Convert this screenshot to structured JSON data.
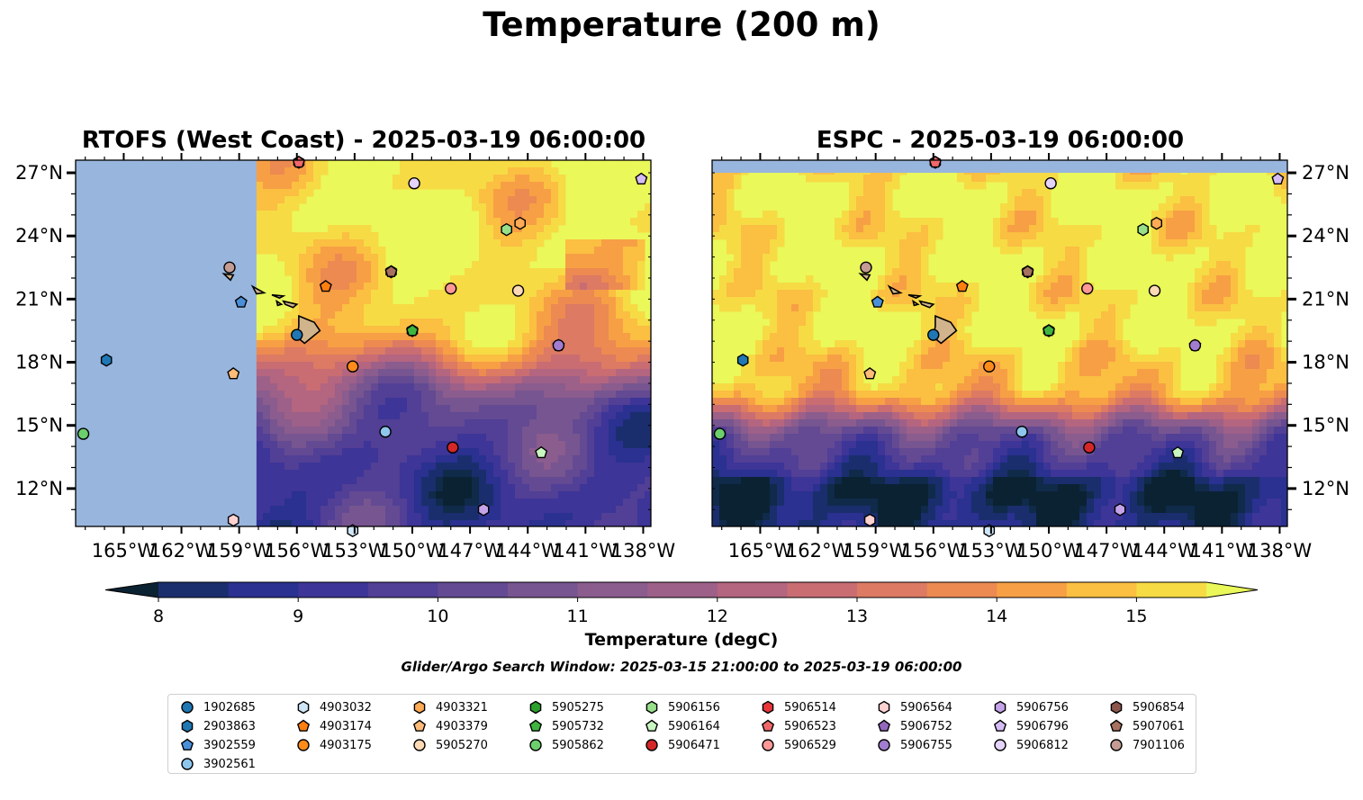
{
  "figure": {
    "title": "Temperature (200 m)",
    "search_window": "Glider/Argo Search Window: 2025-03-15 21:00:00 to 2025-03-19 06:00:00"
  },
  "chart_data": [
    {
      "type": "heatmap",
      "title": "RTOFS (West Coast) - 2025-03-19 06:00:00",
      "model": "RTOFS (West Coast)",
      "valid_time": "2025-03-19 06:00:00",
      "xlabel": "",
      "ylabel": "",
      "xlim": [
        -167.5,
        -137.6
      ],
      "ylim": [
        10.2,
        27.6
      ],
      "x_ticks": [
        "165°W",
        "162°W",
        "159°W",
        "156°W",
        "153°W",
        "150°W",
        "147°W",
        "144°W",
        "141°W",
        "138°W"
      ],
      "y_ticks": [
        "12°N",
        "15°N",
        "18°N",
        "21°N",
        "24°N",
        "27°N"
      ],
      "y_tick_side": "left",
      "no_data_region": {
        "lon_min": -167.5,
        "lon_max": -158.1,
        "lat_min": 10.2,
        "lat_max": 27.6,
        "color": "#98b5de"
      },
      "field_summary": "Mostly above 15 degC in the north; cooler (10-13 degC) tongues south of 19N"
    },
    {
      "type": "heatmap",
      "title": "ESPC - 2025-03-19 06:00:00",
      "model": "ESPC",
      "valid_time": "2025-03-19 06:00:00",
      "xlabel": "",
      "ylabel": "",
      "xlim": [
        -167.5,
        -137.6
      ],
      "ylim": [
        10.2,
        27.6
      ],
      "x_ticks": [
        "165°W",
        "162°W",
        "159°W",
        "156°W",
        "153°W",
        "150°W",
        "147°W",
        "144°W",
        "141°W",
        "138°W"
      ],
      "y_ticks": [
        "12°N",
        "15°N",
        "18°N",
        "21°N",
        "24°N",
        "27°N"
      ],
      "y_tick_side": "right",
      "no_data_region": {
        "lon_min": -167.5,
        "lon_max": -137.6,
        "lat_min": 27.0,
        "lat_max": 27.6,
        "color": "#98b5de"
      },
      "field_summary": "Above 15 degC north of about 16N; 9-12 degC in the south"
    }
  ],
  "colorbar": {
    "label": "Temperature (degC)",
    "ticks": [
      "8",
      "9",
      "10",
      "11",
      "12",
      "13",
      "14",
      "15"
    ],
    "levels": [
      7.75,
      8.0,
      8.5,
      9.0,
      9.5,
      10.0,
      10.5,
      11.0,
      11.5,
      12.0,
      12.5,
      13.0,
      13.5,
      14.0,
      14.5,
      15.0,
      15.5
    ],
    "colors": [
      "#0b2233",
      "#102a4a",
      "#1a2e6e",
      "#2a3190",
      "#3d3597",
      "#523f96",
      "#634a93",
      "#775590",
      "#8b5c8e",
      "#9d6088",
      "#b4657f",
      "#c96d73",
      "#dc7a63",
      "#ec8a52",
      "#f79f45",
      "#fbbf41",
      "#f6db45",
      "#eaf85a"
    ],
    "extend": "both"
  },
  "platforms": [
    {
      "id": "1902685",
      "lon": -156.0,
      "lat": 19.3,
      "marker": "circle",
      "color": "#1f77b4"
    },
    {
      "id": "2903863",
      "lon": -165.9,
      "lat": 18.1,
      "marker": "hexagon",
      "color": "#1f77b4"
    },
    {
      "id": "3902559",
      "lon": -158.9,
      "lat": 20.85,
      "marker": "pentagon",
      "color": "#4a90d9"
    },
    {
      "id": "3902561",
      "lon": -151.4,
      "lat": 14.7,
      "marker": "circle",
      "color": "#8fc6ee"
    },
    {
      "id": "4903032",
      "lon": -153.1,
      "lat": 10.0,
      "marker": "hexagon",
      "color": "#cfe6f7"
    },
    {
      "id": "4903174",
      "lon": -154.5,
      "lat": 21.6,
      "marker": "pentagon",
      "color": "#ff7f0e"
    },
    {
      "id": "4903175",
      "lon": -153.1,
      "lat": 17.8,
      "marker": "circle",
      "color": "#ff8c1a"
    },
    {
      "id": "4903321",
      "lon": -144.4,
      "lat": 24.6,
      "marker": "hexagon",
      "color": "#ffaa55"
    },
    {
      "id": "4903379",
      "lon": -159.3,
      "lat": 17.45,
      "marker": "pentagon",
      "color": "#ffbb78"
    },
    {
      "id": "5905270",
      "lon": -144.5,
      "lat": 21.4,
      "marker": "circle",
      "color": "#fdd9b5"
    },
    {
      "id": "5905275",
      "lon": -150.0,
      "lat": 19.5,
      "marker": "hexagon",
      "color": "#2ca02c"
    },
    {
      "id": "5905732",
      "lon": -150.0,
      "lat": 19.5,
      "marker": "pentagon",
      "color": "#3fb53f"
    },
    {
      "id": "5905862",
      "lon": -167.1,
      "lat": 14.6,
      "marker": "circle",
      "color": "#6ccf6c"
    },
    {
      "id": "5906156",
      "lon": -145.1,
      "lat": 24.3,
      "marker": "hexagon",
      "color": "#98df8a"
    },
    {
      "id": "5906164",
      "lon": -143.3,
      "lat": 13.7,
      "marker": "pentagon",
      "color": "#c8f5c0"
    },
    {
      "id": "5906471",
      "lon": -147.9,
      "lat": 13.95,
      "marker": "circle",
      "color": "#d62728"
    },
    {
      "id": "5906514",
      "lon": -155.9,
      "lat": 27.5,
      "marker": "hexagon",
      "color": "#e8363a"
    },
    {
      "id": "5906523",
      "lon": -155.9,
      "lat": 27.5,
      "marker": "pentagon",
      "color": "#f0686a"
    },
    {
      "id": "5906529",
      "lon": -148.0,
      "lat": 21.5,
      "marker": "circle",
      "color": "#ff9896"
    },
    {
      "id": "5906564",
      "lon": -159.3,
      "lat": 10.5,
      "marker": "hexagon",
      "color": "#ffd2d2"
    },
    {
      "id": "5906752",
      "lon": -142.4,
      "lat": 18.8,
      "marker": "pentagon",
      "color": "#9467bd"
    },
    {
      "id": "5906755",
      "lon": -142.4,
      "lat": 18.8,
      "marker": "circle",
      "color": "#a27cd0"
    },
    {
      "id": "5906756",
      "lon": -146.3,
      "lat": 11.0,
      "marker": "hexagon",
      "color": "#c5a3e8"
    },
    {
      "id": "5906796",
      "lon": -138.1,
      "lat": 26.7,
      "marker": "pentagon",
      "color": "#d6bcf5"
    },
    {
      "id": "5906812",
      "lon": -149.9,
      "lat": 26.5,
      "marker": "circle",
      "color": "#e5d3fb"
    },
    {
      "id": "5906854",
      "lon": -151.1,
      "lat": 22.3,
      "marker": "hexagon",
      "color": "#8c564b"
    },
    {
      "id": "5907061",
      "lon": -151.1,
      "lat": 22.3,
      "marker": "pentagon",
      "color": "#a8715f"
    },
    {
      "id": "7901106",
      "lon": -159.5,
      "lat": 22.5,
      "marker": "circle",
      "color": "#c49c94"
    }
  ]
}
